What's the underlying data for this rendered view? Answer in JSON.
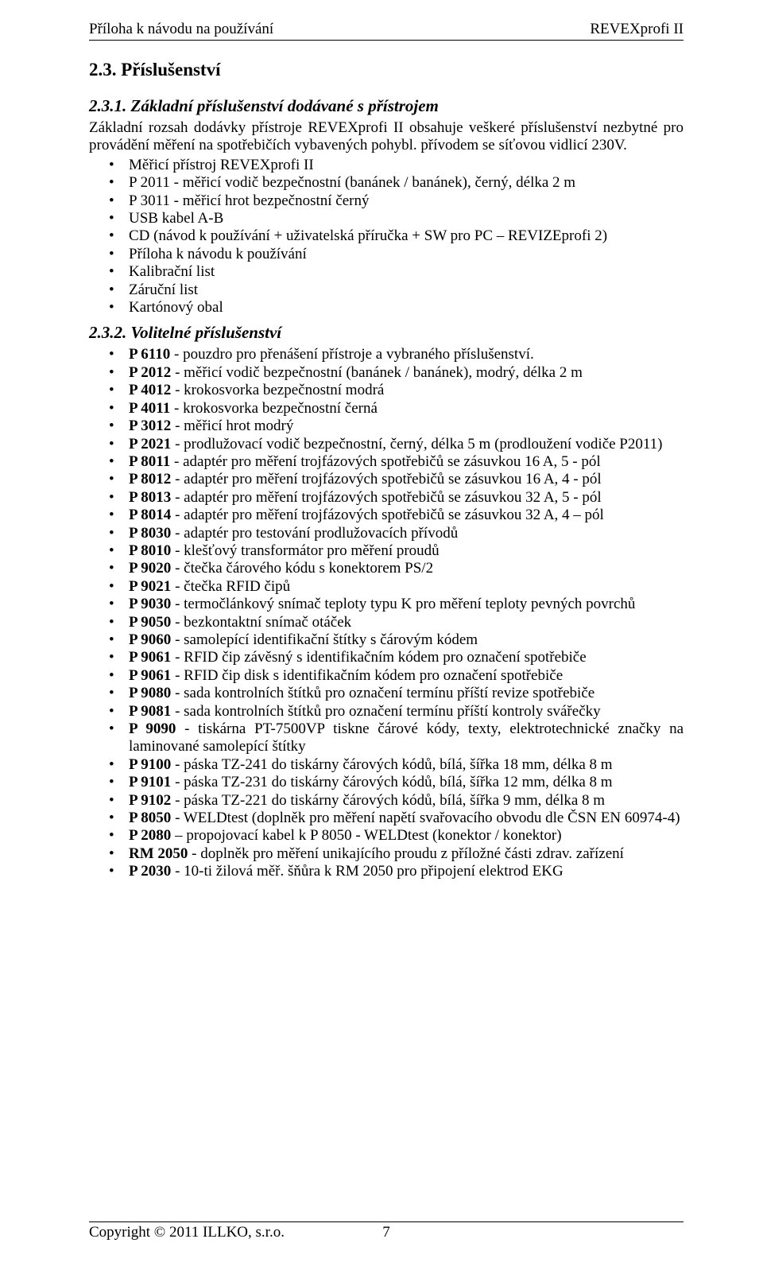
{
  "header": {
    "left": "Příloha k návodu na používání",
    "right": "REVEXprofi II"
  },
  "section": {
    "number_title": "2.3. Příslušenství",
    "sub1_title": "2.3.1. Základní příslušenství dodávané s přístrojem",
    "sub1_para": "Základní rozsah dodávky přístroje REVEXprofi II obsahuje veškeré příslušenství nezbytné pro provádění měření na spotřebičích vybavených pohybl. přívodem se síťovou vidlicí 230V.",
    "sub1_items": [
      "Měřicí přístroj REVEXprofi II",
      "P 2011 - měřicí vodič bezpečnostní (banánek / banánek), černý, délka 2 m",
      "P 3011 - měřicí hrot bezpečnostní černý",
      "USB kabel A-B",
      "CD (návod k používání + uživatelská příručka + SW pro PC – REVIZEprofi 2)",
      "Příloha k návodu k používání",
      "Kalibrační list",
      "Záruční list",
      "Kartónový obal"
    ],
    "sub2_title": "2.3.2. Volitelné příslušenství",
    "sub2_items": [
      {
        "bold": "P 6110",
        "rest": " - pouzdro pro přenášení přístroje a vybraného příslušenství."
      },
      {
        "bold": "P 2012",
        "rest": " - měřicí vodič bezpečnostní (banánek / banánek), modrý, délka 2 m"
      },
      {
        "bold": "P 4012",
        "rest": " - krokosvorka bezpečnostní modrá"
      },
      {
        "bold": "P 4011",
        "rest": " - krokosvorka bezpečnostní černá"
      },
      {
        "bold": "P 3012",
        "rest": " - měřicí hrot modrý"
      },
      {
        "bold": "P 2021",
        "rest": " - prodlužovací vodič bezpečnostní, černý, délka 5 m (prodloužení vodiče P2011)"
      },
      {
        "bold": "P 8011",
        "rest": " - adaptér pro měření trojfázových spotřebičů se zásuvkou 16 A, 5 - pól"
      },
      {
        "bold": "P 8012",
        "rest": " - adaptér pro měření trojfázových spotřebičů se zásuvkou 16 A, 4 - pól"
      },
      {
        "bold": "P 8013",
        "rest": " - adaptér pro měření trojfázových spotřebičů se zásuvkou 32 A, 5 - pól"
      },
      {
        "bold": "P 8014",
        "rest": " - adaptér pro měření trojfázových spotřebičů se zásuvkou 32 A, 4 – pól"
      },
      {
        "bold": "P 8030",
        "rest": " - adaptér pro testování prodlužovacích přívodů"
      },
      {
        "bold": "P 8010",
        "rest": " - klešťový transformátor pro měření proudů"
      },
      {
        "bold": "P 9020",
        "rest": " - čtečka čárového kódu s konektorem PS/2"
      },
      {
        "bold": "P 9021",
        "rest": " - čtečka RFID čipů"
      },
      {
        "bold": "P 9030",
        "rest": " - termočlánkový snímač teploty typu K pro měření teploty pevných povrchů"
      },
      {
        "bold": "P 9050",
        "rest": " - bezkontaktní snímač otáček"
      },
      {
        "bold": "P 9060",
        "rest": " - samolepící identifikační štítky s čárovým kódem"
      },
      {
        "bold": "P 9061",
        "rest": " - RFID čip závěsný s identifikačním kódem pro označení spotřebiče"
      },
      {
        "bold": "P 9061",
        "rest": " - RFID čip disk s identifikačním kódem pro označení spotřebiče"
      },
      {
        "bold": "P 9080",
        "rest": " - sada kontrolních štítků pro označení termínu příští revize spotřebiče"
      },
      {
        "bold": "P 9081",
        "rest": " - sada kontrolních štítků pro označení termínu příští kontroly svářečky"
      },
      {
        "bold": "P 9090",
        "rest": " - tiskárna PT-7500VP tiskne čárové kódy, texty, elektrotechnické značky na laminované samolepící štítky"
      },
      {
        "bold": "P 9100",
        "rest": " - páska TZ-241 do tiskárny čárových kódů, bílá, šířka 18 mm, délka 8 m"
      },
      {
        "bold": "P 9101",
        "rest": " - páska TZ-231 do tiskárny čárových kódů, bílá, šířka 12 mm, délka 8 m"
      },
      {
        "bold": "P 9102",
        "rest": " - páska TZ-221 do tiskárny čárových kódů, bílá, šířka 9 mm, délka 8 m"
      },
      {
        "bold": "P 8050",
        "rest": " - WELDtest (doplněk pro měření napětí svařovacího obvodu dle ČSN EN 60974-4)"
      },
      {
        "bold": "P 2080",
        "rest": " – propojovací kabel k P 8050 - WELDtest (konektor / konektor)"
      },
      {
        "bold": "RM 2050",
        "rest": " - doplněk pro měření unikajícího proudu z příložné části zdrav. zařízení"
      },
      {
        "bold": "P 2030",
        "rest": " - 10-ti žilová měř. šňůra k RM 2050 pro připojení elektrod EKG"
      }
    ]
  },
  "footer": {
    "left": "Copyright © 2011 ILLKO, s.r.o.",
    "page": "7"
  }
}
